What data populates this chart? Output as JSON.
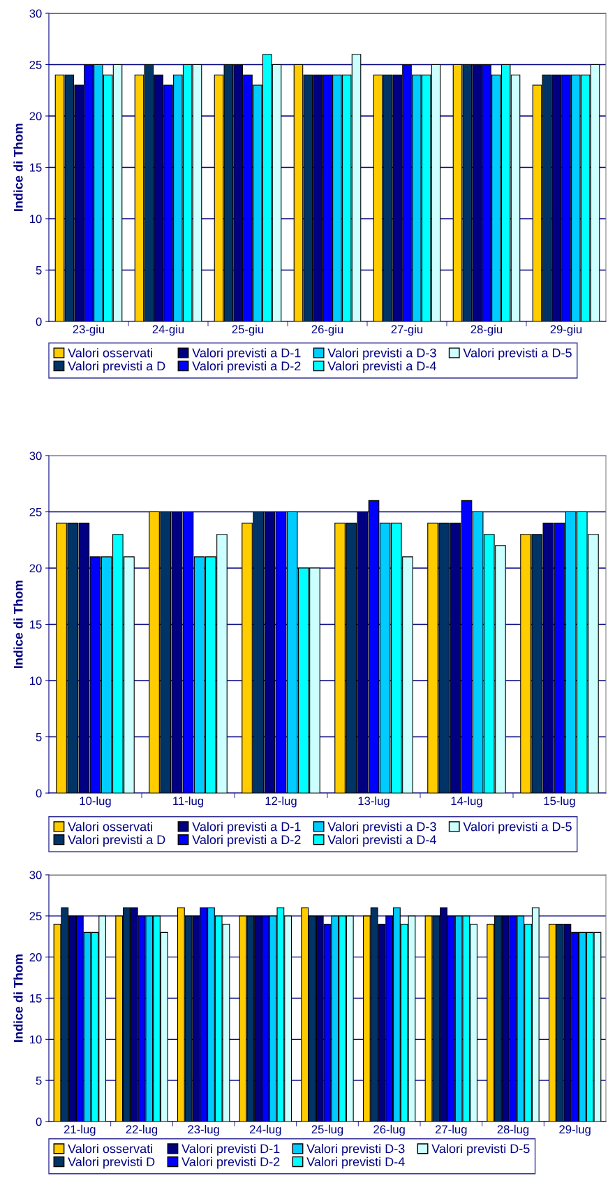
{
  "chart_data": [
    {
      "type": "bar",
      "ylabel": "Indice di Thom",
      "categories": [
        "23-giu",
        "24-giu",
        "25-giu",
        "26-giu",
        "27-giu",
        "28-giu",
        "29-giu"
      ],
      "ylim": [
        0,
        30
      ],
      "yticks": [
        0,
        5,
        10,
        15,
        20,
        25,
        30
      ],
      "grid": "y",
      "legend": "bottom",
      "series": [
        {
          "name": "Valori osservati",
          "color": "#ffcc00",
          "values": [
            24,
            24,
            24,
            25,
            24,
            25,
            23
          ]
        },
        {
          "name": "Valori previsti a D",
          "color": "#003366",
          "values": [
            24,
            25,
            25,
            24,
            24,
            25,
            24
          ]
        },
        {
          "name": "Valori previsti a D-1",
          "color": "#000080",
          "values": [
            23,
            24,
            25,
            24,
            24,
            25,
            24
          ]
        },
        {
          "name": "Valori previsti a D-2",
          "color": "#0000ff",
          "values": [
            25,
            23,
            24,
            24,
            25,
            25,
            24
          ]
        },
        {
          "name": "Valori previsti a D-3",
          "color": "#00ccff",
          "values": [
            25,
            24,
            23,
            24,
            24,
            24,
            24
          ]
        },
        {
          "name": "Valori previsti a D-4",
          "color": "#00ffff",
          "values": [
            24,
            25,
            26,
            24,
            24,
            25,
            24
          ]
        },
        {
          "name": "Valori previsti a D-5",
          "color": "#ccffff",
          "values": [
            25,
            25,
            25,
            26,
            25,
            24,
            25
          ]
        }
      ]
    },
    {
      "type": "bar",
      "ylabel": "Indice di Thom",
      "categories": [
        "10-lug",
        "11-lug",
        "12-lug",
        "13-lug",
        "14-lug",
        "15-lug"
      ],
      "ylim": [
        0,
        30
      ],
      "yticks": [
        0,
        5,
        10,
        15,
        20,
        25,
        30
      ],
      "grid": "y",
      "legend": "bottom",
      "series": [
        {
          "name": "Valori osservati",
          "color": "#ffcc00",
          "values": [
            24,
            25,
            24,
            24,
            24,
            23
          ]
        },
        {
          "name": "Valori previsti a D",
          "color": "#003366",
          "values": [
            24,
            25,
            25,
            24,
            24,
            23
          ]
        },
        {
          "name": "Valori previsti a D-1",
          "color": "#000080",
          "values": [
            24,
            25,
            25,
            25,
            24,
            24
          ]
        },
        {
          "name": "Valori previsti a D-2",
          "color": "#0000ff",
          "values": [
            21,
            25,
            25,
            26,
            26,
            24
          ]
        },
        {
          "name": "Valori previsti a D-3",
          "color": "#00ccff",
          "values": [
            21,
            21,
            25,
            24,
            25,
            25
          ]
        },
        {
          "name": "Valori previsti a D-4",
          "color": "#00ffff",
          "values": [
            23,
            21,
            20,
            24,
            23,
            25
          ]
        },
        {
          "name": "Valori previsti a D-5",
          "color": "#ccffff",
          "values": [
            21,
            23,
            20,
            21,
            22,
            23
          ]
        }
      ]
    },
    {
      "type": "bar",
      "ylabel": "Indice di Thom",
      "categories": [
        "21-lug",
        "22-lug",
        "23-lug",
        "24-lug",
        "25-lug",
        "26-lug",
        "27-lug",
        "28-lug",
        "29-lug"
      ],
      "ylim": [
        0,
        30
      ],
      "yticks": [
        0,
        5,
        10,
        15,
        20,
        25,
        30
      ],
      "grid": "y",
      "legend": "bottom",
      "series": [
        {
          "name": "Valori osservati",
          "color": "#ffcc00",
          "values": [
            24,
            25,
            26,
            25,
            26,
            25,
            25,
            24,
            24
          ]
        },
        {
          "name": "Valori previsti D",
          "color": "#003366",
          "values": [
            26,
            26,
            25,
            25,
            25,
            26,
            25,
            25,
            24
          ]
        },
        {
          "name": "Valori previsti D-1",
          "color": "#000080",
          "values": [
            25,
            26,
            25,
            25,
            25,
            24,
            26,
            25,
            24
          ]
        },
        {
          "name": "Valori previsti D-2",
          "color": "#0000ff",
          "values": [
            25,
            25,
            26,
            25,
            24,
            25,
            25,
            25,
            23
          ]
        },
        {
          "name": "Valori previsti D-3",
          "color": "#00ccff",
          "values": [
            23,
            25,
            26,
            25,
            25,
            26,
            25,
            25,
            23
          ]
        },
        {
          "name": "Valori previsti D-4",
          "color": "#00ffff",
          "values": [
            23,
            25,
            25,
            26,
            25,
            24,
            25,
            24,
            23
          ]
        },
        {
          "name": "Valori previsti D-5",
          "color": "#ccffff",
          "values": [
            25,
            23,
            24,
            25,
            25,
            25,
            24,
            26,
            23
          ]
        }
      ]
    }
  ]
}
